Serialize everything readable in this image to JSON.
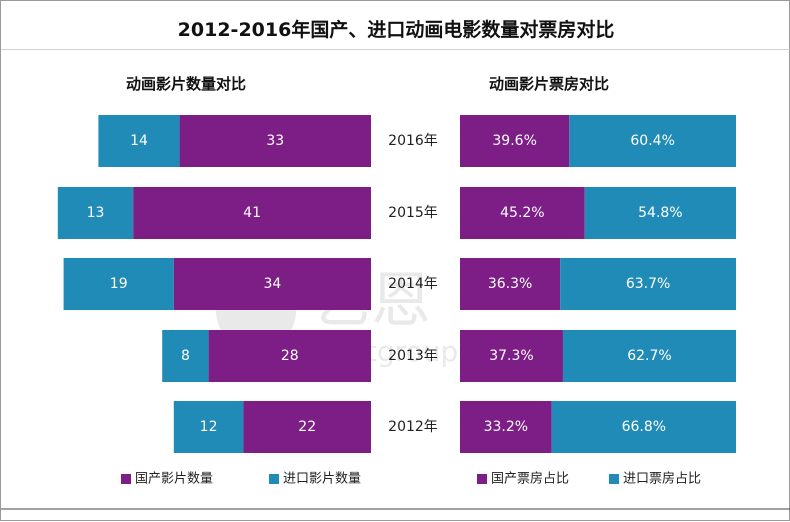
{
  "title": "2012-2016年国产、进口动画电影数量对票房对比",
  "watermark": {
    "brand_cn": "艺恩",
    "brand_en": "entgroup"
  },
  "colors": {
    "domestic": "#7d1d86",
    "imported": "#1f8bb6",
    "text_on_bar": "#ffffff"
  },
  "chart_data": [
    {
      "type": "bar",
      "orientation": "horizontal",
      "stacked": true,
      "title": "动画影片数量对比",
      "categories": [
        "2016年",
        "2015年",
        "2014年",
        "2013年",
        "2012年"
      ],
      "series": [
        {
          "name": "进口影片数量",
          "values": [
            14,
            13,
            19,
            8,
            12
          ]
        },
        {
          "name": "国产影片数量",
          "values": [
            33,
            41,
            34,
            28,
            22
          ]
        }
      ],
      "legend": {
        "position": "bottom",
        "items": [
          "国产影片数量",
          "进口影片数量"
        ]
      }
    },
    {
      "type": "bar",
      "orientation": "horizontal",
      "stacked": true,
      "percent": true,
      "title": "动画影片票房对比",
      "categories": [
        "2016年",
        "2015年",
        "2014年",
        "2013年",
        "2012年"
      ],
      "series": [
        {
          "name": "国产票房占比",
          "values": [
            39.6,
            45.2,
            36.3,
            37.3,
            33.2
          ],
          "labels": [
            "39.6%",
            "45.2%",
            "36.3%",
            "37.3%",
            "33.2%"
          ]
        },
        {
          "name": "进口票房占比",
          "values": [
            60.4,
            54.8,
            63.7,
            62.7,
            66.8
          ],
          "labels": [
            "60.4%",
            "54.8%",
            "63.7%",
            "62.7%",
            "66.8%"
          ]
        }
      ],
      "legend": {
        "position": "bottom",
        "items": [
          "国产票房占比",
          "进口票房占比"
        ]
      }
    }
  ]
}
